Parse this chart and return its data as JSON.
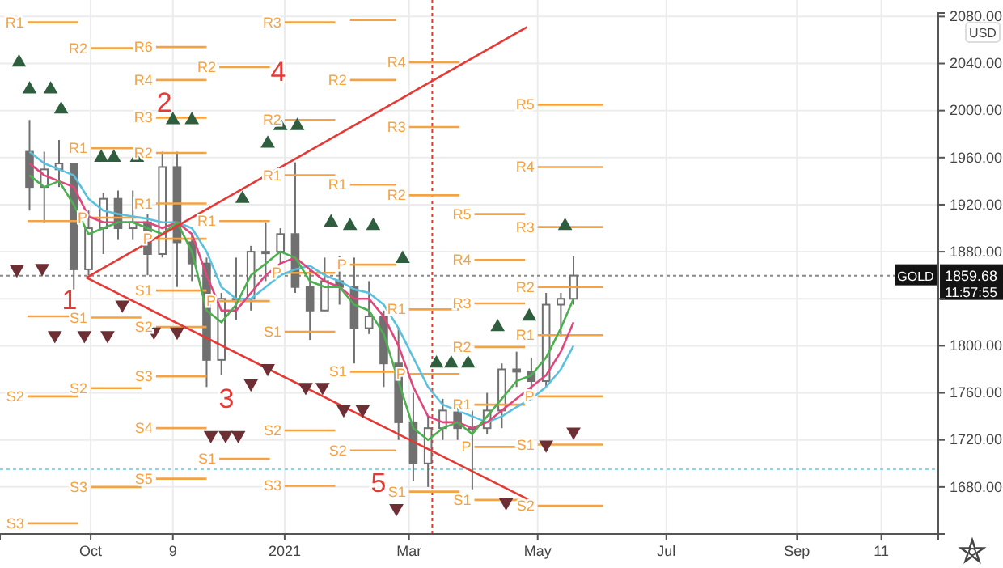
{
  "chart_data": {
    "type": "candlestick",
    "color": "#707070",
    "x": [
      "2020-09-02",
      "2020-09-09",
      "2020-09-16",
      "2020-09-23",
      "2020-09-30",
      "2020-10-07",
      "2020-10-14",
      "2020-10-21",
      "2020-10-28",
      "2020-11-04",
      "2020-11-11",
      "2020-11-18",
      "2020-11-25",
      "2020-12-02",
      "2020-12-09",
      "2020-12-16",
      "2020-12-23",
      "2020-12-30",
      "2021-01-06",
      "2021-01-13",
      "2021-01-20",
      "2021-01-27",
      "2021-02-03",
      "2021-02-10",
      "2021-02-17",
      "2021-02-24",
      "2021-03-03",
      "2021-03-10",
      "2021-03-17",
      "2021-03-24",
      "2021-03-31",
      "2021-04-07",
      "2021-04-14",
      "2021-04-21",
      "2021-04-28",
      "2021-05-05",
      "2021-05-12",
      "2021-05-18"
    ],
    "ohlc": [
      [
        1965,
        1992,
        1915,
        1935
      ],
      [
        1935,
        1965,
        1905,
        1950
      ],
      [
        1950,
        1975,
        1935,
        1955
      ],
      [
        1955,
        1955,
        1848,
        1865
      ],
      [
        1865,
        1915,
        1860,
        1900
      ],
      [
        1900,
        1930,
        1878,
        1925
      ],
      [
        1925,
        1932,
        1890,
        1900
      ],
      [
        1900,
        1932,
        1890,
        1905
      ],
      [
        1905,
        1912,
        1860,
        1878
      ],
      [
        1878,
        1965,
        1875,
        1952
      ],
      [
        1952,
        1965,
        1850,
        1888
      ],
      [
        1888,
        1895,
        1855,
        1870
      ],
      [
        1870,
        1875,
        1765,
        1788
      ],
      [
        1788,
        1845,
        1775,
        1840
      ],
      [
        1840,
        1875,
        1822,
        1840
      ],
      [
        1840,
        1885,
        1830,
        1880
      ],
      [
        1880,
        1905,
        1855,
        1880
      ],
      [
        1880,
        1900,
        1870,
        1895
      ],
      [
        1895,
        1956,
        1845,
        1850
      ],
      [
        1850,
        1865,
        1805,
        1830
      ],
      [
        1830,
        1875,
        1830,
        1855
      ],
      [
        1855,
        1876,
        1835,
        1850
      ],
      [
        1850,
        1875,
        1785,
        1815
      ],
      [
        1815,
        1855,
        1810,
        1825
      ],
      [
        1825,
        1830,
        1765,
        1785
      ],
      [
        1785,
        1815,
        1720,
        1735
      ],
      [
        1735,
        1760,
        1685,
        1700
      ],
      [
        1700,
        1740,
        1680,
        1730
      ],
      [
        1730,
        1755,
        1720,
        1745
      ],
      [
        1745,
        1750,
        1720,
        1730
      ],
      [
        1730,
        1745,
        1678,
        1730
      ],
      [
        1730,
        1760,
        1725,
        1745
      ],
      [
        1745,
        1785,
        1730,
        1780
      ],
      [
        1780,
        1795,
        1765,
        1778
      ],
      [
        1778,
        1790,
        1760,
        1770
      ],
      [
        1770,
        1845,
        1765,
        1835
      ],
      [
        1835,
        1845,
        1808,
        1840
      ],
      [
        1840,
        1876,
        1835,
        1859.68
      ]
    ],
    "xlim": [
      "2020-08-19",
      "2021-11-07"
    ],
    "xticks": [
      {
        "value": "2020-10-01",
        "label": "Oct"
      },
      {
        "value": "2020-11-09",
        "label": "9"
      },
      {
        "value": "2021-01-01",
        "label": "2021"
      },
      {
        "value": "2021-03-01",
        "label": "Mar"
      },
      {
        "value": "2021-05-01",
        "label": "May"
      },
      {
        "value": "2021-07-01",
        "label": "Jul"
      },
      {
        "value": "2021-09-01",
        "label": "Sep"
      },
      {
        "value": "2021-10-11",
        "label": "11"
      }
    ],
    "ylim": [
      1640,
      2083
    ],
    "yticks": [
      {
        "value": 1680,
        "label": "1680.00"
      },
      {
        "value": 1720,
        "label": "1720.00"
      },
      {
        "value": 1760,
        "label": "1760.00"
      },
      {
        "value": 1800,
        "label": "1800.00"
      },
      {
        "value": 1840,
        "label": null
      },
      {
        "value": 1880,
        "label": "1880.00"
      },
      {
        "value": 1920,
        "label": "1920.00"
      },
      {
        "value": 1960,
        "label": "1960.00"
      },
      {
        "value": 2000,
        "label": "2000.00"
      },
      {
        "value": 2040,
        "label": "2040.00"
      },
      {
        "value": 2080,
        "label": "2080.00"
      }
    ],
    "grid": true,
    "series": [
      {
        "type": "line",
        "name": "R1",
        "color": "#f5a342",
        "x": [
          "2020-09-01",
          "2020-09-25"
        ],
        "values": [
          2075,
          2075
        ]
      },
      {
        "type": "line",
        "color": "#f5a342",
        "x": [
          "2020-09-01",
          "2020-09-25"
        ],
        "values": [
          1906,
          1906
        ]
      },
      {
        "type": "line",
        "color": "#f5a342",
        "x": [
          "2020-09-01",
          "2020-09-25"
        ],
        "values": [
          1825,
          1825
        ]
      },
      {
        "type": "line",
        "name": "S2",
        "color": "#f5a342",
        "x": [
          "2020-09-01",
          "2020-09-25"
        ],
        "values": [
          1757,
          1757
        ]
      },
      {
        "type": "line",
        "name": "S3",
        "color": "#f5a342",
        "x": [
          "2020-09-01",
          "2020-09-25"
        ],
        "values": [
          1649,
          1649
        ]
      },
      {
        "type": "line",
        "name": "R2",
        "color": "#f5a342",
        "x": [
          "2020-10-01",
          "2020-10-25"
        ],
        "values": [
          2053,
          2053
        ]
      },
      {
        "type": "line",
        "name": "R1",
        "color": "#f5a342",
        "x": [
          "2020-10-01",
          "2020-10-25"
        ],
        "values": [
          1968,
          1968
        ]
      },
      {
        "type": "line",
        "name": "P",
        "color": "#f5a342",
        "x": [
          "2020-10-01",
          "2020-10-25"
        ],
        "values": [
          1909,
          1909
        ]
      },
      {
        "type": "line",
        "name": "S1",
        "color": "#f5a342",
        "x": [
          "2020-10-01",
          "2020-10-25"
        ],
        "values": [
          1824,
          1824
        ]
      },
      {
        "type": "line",
        "name": "S2",
        "color": "#f5a342",
        "x": [
          "2020-10-01",
          "2020-10-25"
        ],
        "values": [
          1764,
          1764
        ]
      },
      {
        "type": "line",
        "name": "S3",
        "color": "#f5a342",
        "x": [
          "2020-10-01",
          "2020-10-25"
        ],
        "values": [
          1680,
          1680
        ]
      },
      {
        "type": "line",
        "name": "R6",
        "color": "#f5a342",
        "x": [
          "2020-11-01",
          "2020-11-25"
        ],
        "values": [
          2054,
          2054
        ]
      },
      {
        "type": "line",
        "name": "R4",
        "color": "#f5a342",
        "x": [
          "2020-11-01",
          "2020-11-25"
        ],
        "values": [
          2026,
          2026
        ]
      },
      {
        "type": "line",
        "name": "R3",
        "color": "#f5a342",
        "x": [
          "2020-11-01",
          "2020-11-25"
        ],
        "values": [
          1994,
          1994
        ]
      },
      {
        "type": "line",
        "name": "R2",
        "color": "#f5a342",
        "x": [
          "2020-11-01",
          "2020-11-25"
        ],
        "values": [
          1964,
          1964
        ]
      },
      {
        "type": "line",
        "name": "R1",
        "color": "#f5a342",
        "x": [
          "2020-11-01",
          "2020-11-25"
        ],
        "values": [
          1921,
          1921
        ]
      },
      {
        "type": "line",
        "name": "P",
        "color": "#f5a342",
        "x": [
          "2020-11-01",
          "2020-11-25"
        ],
        "values": [
          1891,
          1891
        ]
      },
      {
        "type": "line",
        "name": "S1",
        "color": "#f5a342",
        "x": [
          "2020-11-01",
          "2020-11-25"
        ],
        "values": [
          1847,
          1847
        ]
      },
      {
        "type": "line",
        "name": "S2",
        "color": "#f5a342",
        "x": [
          "2020-11-01",
          "2020-11-25"
        ],
        "values": [
          1816,
          1816
        ]
      },
      {
        "type": "line",
        "name": "S3",
        "color": "#f5a342",
        "x": [
          "2020-11-01",
          "2020-11-25"
        ],
        "values": [
          1774,
          1774
        ]
      },
      {
        "type": "line",
        "name": "S4",
        "color": "#f5a342",
        "x": [
          "2020-11-01",
          "2020-11-25"
        ],
        "values": [
          1730,
          1730
        ]
      },
      {
        "type": "line",
        "name": "S5",
        "color": "#f5a342",
        "x": [
          "2020-11-01",
          "2020-11-25"
        ],
        "values": [
          1687,
          1687
        ]
      },
      {
        "type": "line",
        "name": "R2",
        "color": "#f5a342",
        "x": [
          "2020-12-01",
          "2020-12-25"
        ],
        "values": [
          2037,
          2037
        ]
      },
      {
        "type": "line",
        "name": "R1",
        "color": "#f5a342",
        "x": [
          "2020-12-01",
          "2020-12-25"
        ],
        "values": [
          1906,
          1906
        ]
      },
      {
        "type": "line",
        "name": "P",
        "color": "#f5a342",
        "x": [
          "2020-12-01",
          "2020-12-25"
        ],
        "values": [
          1838,
          1838
        ]
      },
      {
        "type": "line",
        "name": "S1",
        "color": "#f5a342",
        "x": [
          "2020-12-01",
          "2020-12-25"
        ],
        "values": [
          1704,
          1704
        ]
      },
      {
        "type": "line",
        "name": "R3",
        "color": "#f5a342",
        "x": [
          "2021-01-01",
          "2021-01-25"
        ],
        "values": [
          2075,
          2075
        ]
      },
      {
        "type": "line",
        "name": "R2",
        "color": "#f5a342",
        "x": [
          "2021-01-01",
          "2021-01-25"
        ],
        "values": [
          1992,
          1992
        ]
      },
      {
        "type": "line",
        "name": "R1",
        "color": "#f5a342",
        "x": [
          "2021-01-01",
          "2021-01-25"
        ],
        "values": [
          1945,
          1945
        ]
      },
      {
        "type": "line",
        "name": "P",
        "color": "#f5a342",
        "x": [
          "2021-01-01",
          "2021-01-25"
        ],
        "values": [
          1862,
          1862
        ]
      },
      {
        "type": "line",
        "name": "S1",
        "color": "#f5a342",
        "x": [
          "2021-01-01",
          "2021-01-25"
        ],
        "values": [
          1812,
          1812
        ]
      },
      {
        "type": "line",
        "name": "S2",
        "color": "#f5a342",
        "x": [
          "2021-01-01",
          "2021-01-25"
        ],
        "values": [
          1728,
          1728
        ]
      },
      {
        "type": "line",
        "name": "S3",
        "color": "#f5a342",
        "x": [
          "2021-01-01",
          "2021-01-25"
        ],
        "values": [
          1681,
          1681
        ]
      },
      {
        "type": "line",
        "color": "#f5a342",
        "x": [
          "2021-02-01",
          "2021-02-23"
        ],
        "values": [
          2077,
          2077
        ]
      },
      {
        "type": "line",
        "name": "R2",
        "color": "#f5a342",
        "x": [
          "2021-02-01",
          "2021-02-23"
        ],
        "values": [
          2026,
          2026
        ]
      },
      {
        "type": "line",
        "name": "R1",
        "color": "#f5a342",
        "x": [
          "2021-02-01",
          "2021-02-23"
        ],
        "values": [
          1937,
          1937
        ]
      },
      {
        "type": "line",
        "name": "P",
        "color": "#f5a342",
        "x": [
          "2021-02-01",
          "2021-02-23"
        ],
        "values": [
          1869,
          1869
        ]
      },
      {
        "type": "line",
        "name": "S1",
        "color": "#f5a342",
        "x": [
          "2021-02-01",
          "2021-02-23"
        ],
        "values": [
          1778,
          1778
        ]
      },
      {
        "type": "line",
        "name": "S2",
        "color": "#f5a342",
        "x": [
          "2021-02-01",
          "2021-02-23"
        ],
        "values": [
          1711,
          1711
        ]
      },
      {
        "type": "line",
        "name": "R4",
        "color": "#f5a342",
        "x": [
          "2021-03-01",
          "2021-03-25"
        ],
        "values": [
          2041,
          2041
        ]
      },
      {
        "type": "line",
        "name": "R3",
        "color": "#f5a342",
        "x": [
          "2021-03-01",
          "2021-03-25"
        ],
        "values": [
          1986,
          1986
        ]
      },
      {
        "type": "line",
        "name": "R2",
        "color": "#f5a342",
        "x": [
          "2021-03-01",
          "2021-03-25"
        ],
        "values": [
          1928,
          1928
        ]
      },
      {
        "type": "line",
        "name": "R1",
        "color": "#f5a342",
        "x": [
          "2021-03-01",
          "2021-03-25"
        ],
        "values": [
          1831,
          1831
        ]
      },
      {
        "type": "line",
        "name": "P",
        "color": "#f5a342",
        "x": [
          "2021-03-01",
          "2021-03-25"
        ],
        "values": [
          1776,
          1776
        ]
      },
      {
        "type": "line",
        "name": "S1",
        "color": "#f5a342",
        "x": [
          "2021-03-01",
          "2021-03-25"
        ],
        "values": [
          1676,
          1676
        ]
      },
      {
        "type": "line",
        "name": "R5",
        "color": "#f5a342",
        "x": [
          "2021-04-01",
          "2021-04-25"
        ],
        "values": [
          1912,
          1912
        ]
      },
      {
        "type": "line",
        "name": "R4",
        "color": "#f5a342",
        "x": [
          "2021-04-01",
          "2021-04-25"
        ],
        "values": [
          1873,
          1873
        ]
      },
      {
        "type": "line",
        "name": "R3",
        "color": "#f5a342",
        "x": [
          "2021-04-01",
          "2021-04-25"
        ],
        "values": [
          1836,
          1836
        ]
      },
      {
        "type": "line",
        "name": "R2",
        "color": "#f5a342",
        "x": [
          "2021-04-01",
          "2021-04-25"
        ],
        "values": [
          1799,
          1799
        ]
      },
      {
        "type": "line",
        "name": "R1",
        "color": "#f5a342",
        "x": [
          "2021-04-01",
          "2021-04-25"
        ],
        "values": [
          1750,
          1750
        ]
      },
      {
        "type": "line",
        "name": "P",
        "color": "#f5a342",
        "x": [
          "2021-04-01",
          "2021-04-25"
        ],
        "values": [
          1714,
          1714
        ]
      },
      {
        "type": "line",
        "name": "S1",
        "color": "#f5a342",
        "x": [
          "2021-04-01",
          "2021-04-25"
        ],
        "values": [
          1669,
          1669
        ]
      },
      {
        "type": "line",
        "name": "R5",
        "color": "#f5a342",
        "x": [
          "2021-05-01",
          "2021-06-01"
        ],
        "values": [
          2005,
          2005
        ]
      },
      {
        "type": "line",
        "name": "R4",
        "color": "#f5a342",
        "x": [
          "2021-05-01",
          "2021-06-01"
        ],
        "values": [
          1952,
          1952
        ]
      },
      {
        "type": "line",
        "name": "R3",
        "color": "#f5a342",
        "x": [
          "2021-05-01",
          "2021-06-01"
        ],
        "values": [
          1901,
          1901
        ]
      },
      {
        "type": "line",
        "name": "R2",
        "color": "#f5a342",
        "x": [
          "2021-05-01",
          "2021-06-01"
        ],
        "values": [
          1850,
          1850
        ]
      },
      {
        "type": "line",
        "name": "R1",
        "color": "#f5a342",
        "x": [
          "2021-05-01",
          "2021-06-01"
        ],
        "values": [
          1809,
          1809
        ]
      },
      {
        "type": "line",
        "name": "P",
        "color": "#f5a342",
        "x": [
          "2021-05-01",
          "2021-06-01"
        ],
        "values": [
          1757,
          1757
        ]
      },
      {
        "type": "line",
        "name": "S1",
        "color": "#f5a342",
        "x": [
          "2021-05-01",
          "2021-06-01"
        ],
        "values": [
          1716,
          1716
        ]
      },
      {
        "type": "line",
        "name": "S2",
        "color": "#f5a342",
        "x": [
          "2021-05-01",
          "2021-06-01"
        ],
        "values": [
          1664,
          1664
        ]
      },
      {
        "type": "line",
        "color": "#5bc0de",
        "values": [
          1965,
          1955,
          1950,
          1945,
          1925,
          1915,
          1912,
          1910,
          1908,
          1905,
          1905,
          1900,
          1880,
          1850,
          1840,
          1840,
          1850,
          1860,
          1865,
          1868,
          1860,
          1855,
          1848,
          1845,
          1835,
          1815,
          1790,
          1765,
          1750,
          1745,
          1740,
          1735,
          1740,
          1748,
          1755,
          1765,
          1780,
          1800
        ]
      },
      {
        "type": "line",
        "color": "#e0457b",
        "values": [
          1955,
          1945,
          1940,
          1935,
          1910,
          1905,
          1905,
          1905,
          1905,
          1900,
          1905,
          1895,
          1860,
          1830,
          1830,
          1845,
          1860,
          1870,
          1875,
          1865,
          1855,
          1850,
          1840,
          1840,
          1825,
          1800,
          1765,
          1740,
          1735,
          1735,
          1730,
          1735,
          1745,
          1755,
          1765,
          1775,
          1795,
          1820
        ]
      },
      {
        "type": "line",
        "color": "#4caf50",
        "values": [
          1945,
          1935,
          1940,
          1920,
          1895,
          1900,
          1905,
          1905,
          1900,
          1895,
          1905,
          1880,
          1830,
          1820,
          1835,
          1860,
          1870,
          1880,
          1875,
          1855,
          1850,
          1850,
          1835,
          1830,
          1810,
          1770,
          1730,
          1720,
          1730,
          1735,
          1725,
          1740,
          1755,
          1770,
          1775,
          1790,
          1815,
          1840
        ]
      },
      {
        "type": "line",
        "color": "#e53935",
        "x": [
          "2020-09-29",
          "2021-04-26"
        ],
        "values": [
          1858,
          2071
        ]
      },
      {
        "type": "line",
        "color": "#e53935",
        "x": [
          "2020-09-29",
          "2021-04-27"
        ],
        "values": [
          1858,
          1669
        ]
      },
      {
        "type": "scatter",
        "marker": "triangle",
        "color": "#2f5e3e",
        "x": [
          "2020-08-28",
          "2020-09-02",
          "2020-09-12",
          "2020-09-17",
          "2020-10-06",
          "2020-10-12",
          "2020-10-23",
          "2020-11-09",
          "2020-11-18",
          "2020-12-12",
          "2020-12-24",
          "2020-12-30",
          "2021-01-07",
          "2021-01-23",
          "2021-02-01",
          "2021-02-12",
          "2021-02-26",
          "2021-03-14",
          "2021-03-21",
          "2021-03-29",
          "2021-04-12",
          "2021-04-27",
          "2021-05-14"
        ],
        "values": [
          2041,
          2018,
          2018,
          2001,
          1960,
          1960,
          1960,
          1992,
          1992,
          1925,
          1972,
          1987,
          1987,
          1905,
          1902,
          1902,
          1874,
          1785,
          1785,
          1785,
          1816,
          1825,
          1902
        ]
      },
      {
        "type": "scatter",
        "marker": "triangle-down",
        "color": "#6d2f34",
        "x": [
          "2020-08-27",
          "2020-09-08",
          "2020-09-14",
          "2020-09-28",
          "2020-10-09",
          "2020-10-16",
          "2020-10-31",
          "2020-11-11",
          "2020-11-27",
          "2020-12-04",
          "2020-12-10",
          "2020-12-16",
          "2020-12-24",
          "2021-01-11",
          "2021-01-19",
          "2021-01-29",
          "2021-02-07",
          "2021-02-23",
          "2021-04-16",
          "2021-05-05",
          "2021-05-18"
        ],
        "values": [
          1865,
          1866,
          1809,
          1809,
          1809,
          1835,
          1812,
          1812,
          1724,
          1724,
          1724,
          1768,
          1781,
          1765,
          1765,
          1746,
          1746,
          1662,
          1667,
          1716,
          1727
        ]
      }
    ],
    "ref_lines": [
      {
        "axis": "y",
        "value": 1859.68,
        "label": "1859.68",
        "color": "#888888",
        "line_style": "dotted"
      },
      {
        "axis": "y",
        "value": 1695,
        "color": "#8fd3ea",
        "line_style": "dotted"
      },
      {
        "axis": "x",
        "value": "2021-03-12",
        "color": "#e53935",
        "line_style": "dotted"
      }
    ],
    "annotations": [
      "USD",
      "GOLD",
      "11:57:55",
      "3",
      "4",
      "5",
      {
        "text": "1",
        "x": "2020-09-21",
        "y": 1831
      },
      {
        "text": "2",
        "x": "2020-11-05",
        "y": 1999
      }
    ]
  }
}
